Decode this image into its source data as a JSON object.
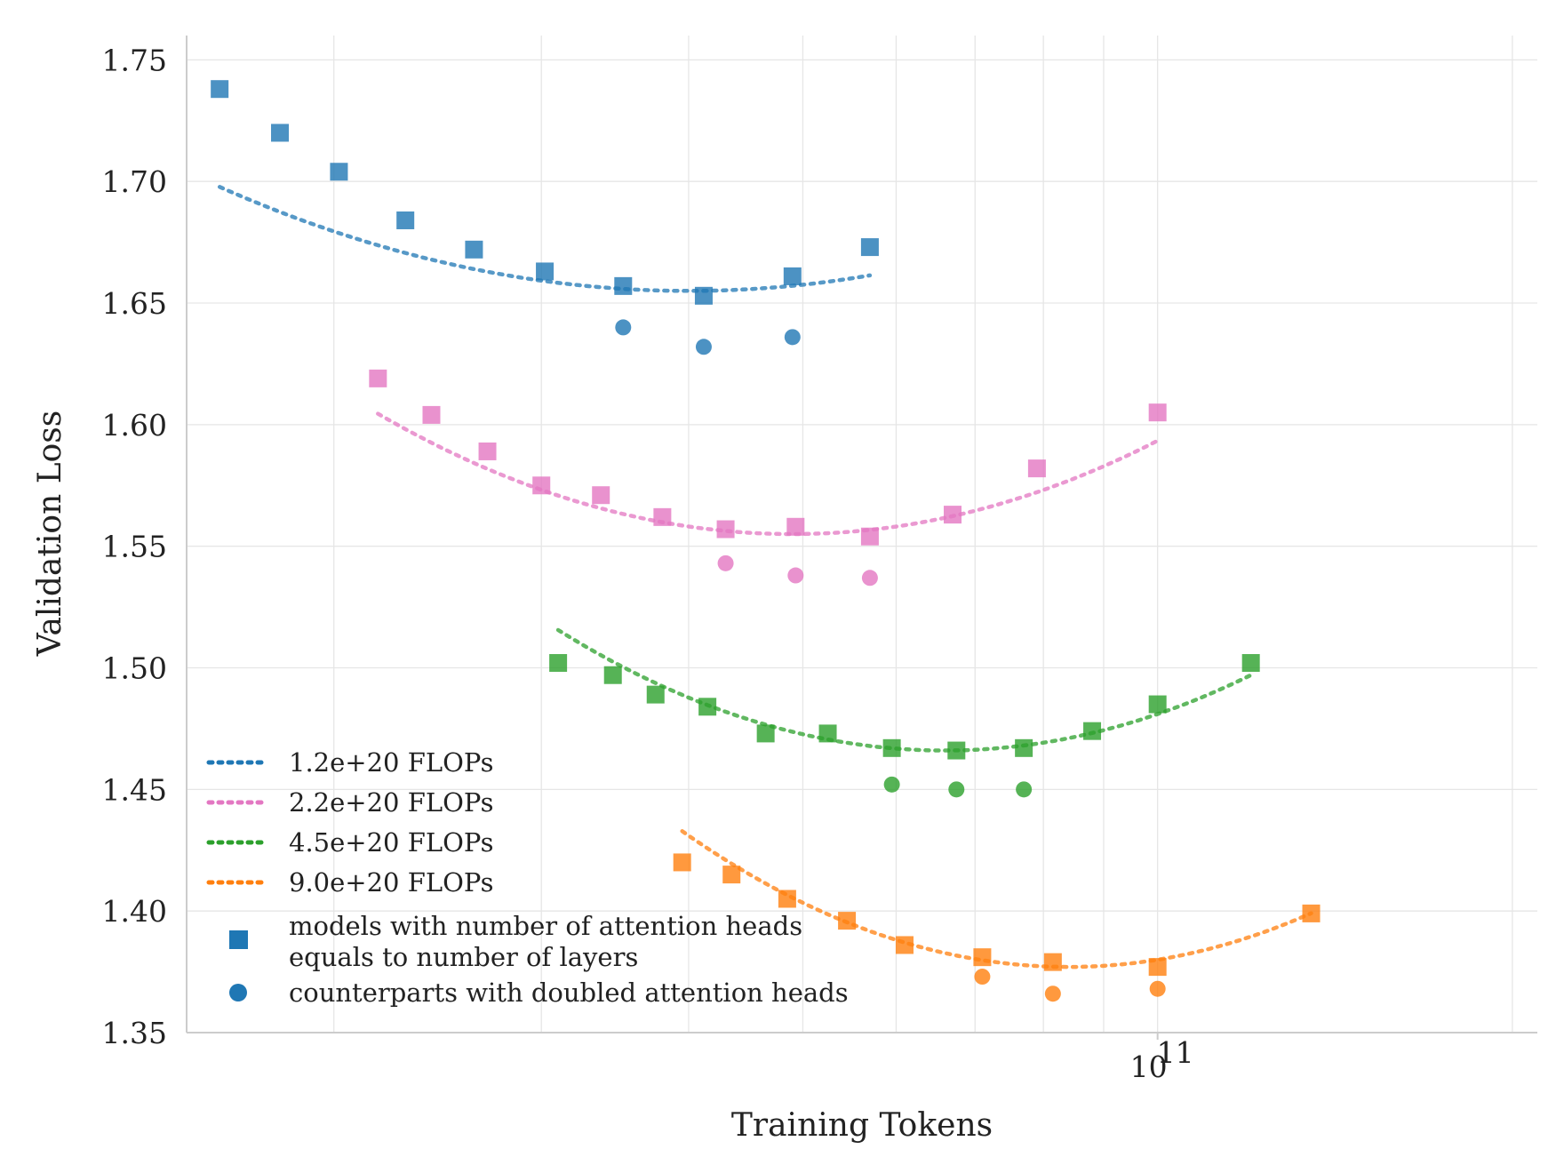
{
  "chart_data": {
    "type": "scatter",
    "xlabel": "Training Tokens",
    "ylabel": "Validation Loss",
    "x_scale": "log",
    "xlim": [
      15000000000.0,
      210000000000.0
    ],
    "ylim": [
      1.35,
      1.76
    ],
    "x_tick_labels": [
      {
        "value": 100000000000.0,
        "base": "10",
        "exp": "11"
      }
    ],
    "y_ticks": [
      1.35,
      1.4,
      1.45,
      1.5,
      1.55,
      1.6,
      1.65,
      1.7,
      1.75
    ],
    "y_tick_labels": [
      "1.35",
      "1.40",
      "1.45",
      "1.50",
      "1.55",
      "1.60",
      "1.65",
      "1.70",
      "1.75"
    ],
    "grid": true,
    "legend_position": "bottom-left",
    "series": [
      {
        "name": "1.2e+20 FLOPs",
        "color": "#1f77b4",
        "squares": [
          [
            16000000000.0,
            1.738
          ],
          [
            18000000000.0,
            1.72
          ],
          [
            20200000000.0,
            1.704
          ],
          [
            23000000000.0,
            1.684
          ],
          [
            26300000000.0,
            1.672
          ],
          [
            30200000000.0,
            1.663
          ],
          [
            35200000000.0,
            1.657
          ],
          [
            41200000000.0,
            1.653
          ],
          [
            49000000000.0,
            1.661
          ],
          [
            57000000000.0,
            1.673
          ]
        ],
        "circles": [
          [
            35200000000.0,
            1.64
          ],
          [
            41200000000.0,
            1.632
          ],
          [
            49000000000.0,
            1.636
          ]
        ],
        "fit": {
          "from": 16000000000.0,
          "to": 57000000000.0,
          "min_x": 40000000000.0,
          "min_y": 1.655,
          "curvature": 0.27
        }
      },
      {
        "name": "2.2e+20 FLOPs",
        "color": "#e377c2",
        "squares": [
          [
            21800000000.0,
            1.619
          ],
          [
            24200000000.0,
            1.604
          ],
          [
            27000000000.0,
            1.589
          ],
          [
            30000000000.0,
            1.575
          ],
          [
            33700000000.0,
            1.571
          ],
          [
            38000000000.0,
            1.562
          ],
          [
            43000000000.0,
            1.557
          ],
          [
            49300000000.0,
            1.558
          ],
          [
            57000000000.0,
            1.554
          ],
          [
            67000000000.0,
            1.563
          ],
          [
            79000000000.0,
            1.582
          ],
          [
            100000000000.0,
            1.605
          ]
        ],
        "circles": [
          [
            43000000000.0,
            1.543
          ],
          [
            49300000000.0,
            1.538
          ],
          [
            57000000000.0,
            1.537
          ]
        ],
        "fit": {
          "from": 21800000000.0,
          "to": 100000000000.0,
          "min_x": 49000000000.0,
          "min_y": 1.555,
          "curvature": 0.4
        }
      },
      {
        "name": "4.5e+20 FLOPs",
        "color": "#2ca02c",
        "squares": [
          [
            31000000000.0,
            1.502
          ],
          [
            34500000000.0,
            1.497
          ],
          [
            37500000000.0,
            1.489
          ],
          [
            41500000000.0,
            1.484
          ],
          [
            46500000000.0,
            1.473
          ],
          [
            52500000000.0,
            1.473
          ],
          [
            59500000000.0,
            1.467
          ],
          [
            67500000000.0,
            1.466
          ],
          [
            77000000000.0,
            1.467
          ],
          [
            88000000000.0,
            1.474
          ],
          [
            100000000000.0,
            1.485
          ],
          [
            120000000000.0,
            1.502
          ]
        ],
        "circles": [
          [
            59500000000.0,
            1.452
          ],
          [
            67500000000.0,
            1.45
          ],
          [
            77000000000.0,
            1.45
          ]
        ],
        "fit": {
          "from": 31000000000.0,
          "to": 120000000000.0,
          "min_x": 66000000000.0,
          "min_y": 1.466,
          "curvature": 0.46
        }
      },
      {
        "name": "9.0e+20 FLOPs",
        "color": "#ff7f0e",
        "squares": [
          [
            39500000000.0,
            1.42
          ],
          [
            43500000000.0,
            1.415
          ],
          [
            48500000000.0,
            1.405
          ],
          [
            54500000000.0,
            1.396
          ],
          [
            61000000000.0,
            1.386
          ],
          [
            71000000000.0,
            1.381
          ],
          [
            81500000000.0,
            1.379
          ],
          [
            100000000000.0,
            1.377
          ],
          [
            135000000000.0,
            1.399
          ]
        ],
        "circles": [
          [
            71000000000.0,
            1.373
          ],
          [
            81500000000.0,
            1.366
          ],
          [
            100000000000.0,
            1.368
          ]
        ],
        "fit": {
          "from": 39500000000.0,
          "to": 135000000000.0,
          "min_x": 84000000000.0,
          "min_y": 1.377,
          "curvature": 0.52
        }
      }
    ],
    "legend_extra": [
      {
        "marker": "square",
        "label_line1": "models with number of attention heads",
        "label_line2": "equals to number of layers"
      },
      {
        "marker": "circle",
        "label": "counterparts with doubled attention heads"
      }
    ]
  }
}
